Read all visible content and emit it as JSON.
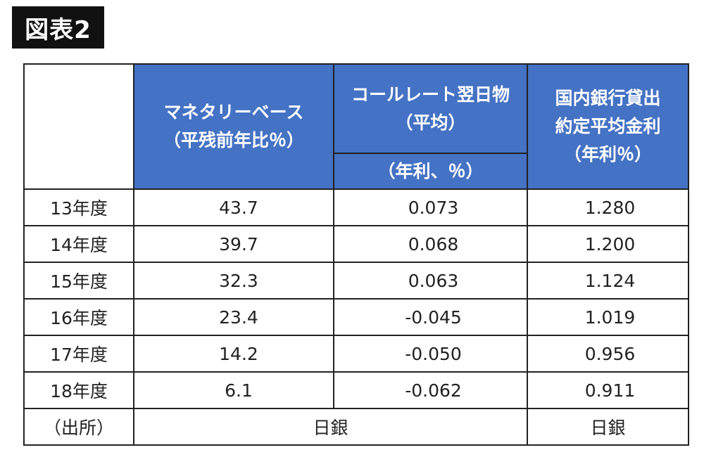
{
  "figure_label": "図表2",
  "headers": {
    "monetary_base": [
      "マネタリーベース",
      "（平残前年比％）"
    ],
    "call_rate": [
      "コールレート翌日物",
      "（平均）"
    ],
    "call_rate_unit": "（年利、％）",
    "loan_rate": [
      "国内銀行貸出",
      "約定平均金利",
      "（年利％）"
    ]
  },
  "rows": [
    {
      "year": "13年度",
      "monetary_base": "43.7",
      "call_rate": "0.073",
      "loan_rate": "1.280"
    },
    {
      "year": "14年度",
      "monetary_base": "39.7",
      "call_rate": "0.068",
      "loan_rate": "1.200"
    },
    {
      "year": "15年度",
      "monetary_base": "32.3",
      "call_rate": "0.063",
      "loan_rate": "1.124"
    },
    {
      "year": "16年度",
      "monetary_base": "23.4",
      "call_rate": "-0.045",
      "loan_rate": "1.019"
    },
    {
      "year": "17年度",
      "monetary_base": "14.2",
      "call_rate": "-0.050",
      "loan_rate": "0.956"
    },
    {
      "year": "18年度",
      "monetary_base": "6.1",
      "call_rate": "-0.062",
      "loan_rate": "0.911"
    }
  ],
  "source": {
    "label": "（出所）",
    "left": "日銀",
    "right": "日銀"
  }
}
